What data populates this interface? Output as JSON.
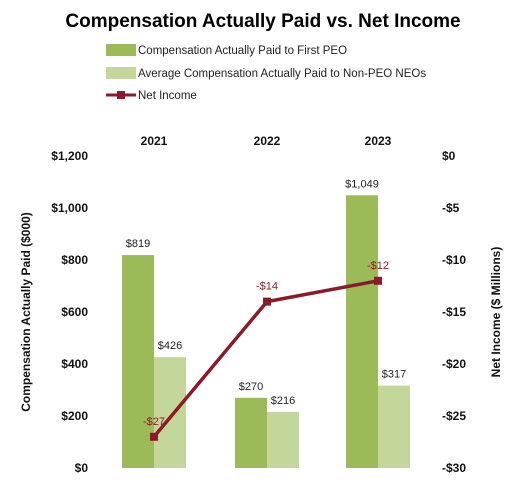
{
  "chart_data": {
    "type": "bar",
    "title": "Compensation Actually Paid vs. Net Income",
    "categories": [
      "2021",
      "2022",
      "2023"
    ],
    "series": [
      {
        "name": "Compensation Actually Paid to First PEO",
        "type": "bar",
        "axis": "left",
        "color": "#9bbb59",
        "values": [
          819,
          270,
          1049
        ],
        "labels": [
          "$819",
          "$270",
          "$1,049"
        ]
      },
      {
        "name": "Average Compensation Actually Paid to Non-PEO NEOs",
        "type": "bar",
        "axis": "left",
        "color": "#c4d79b",
        "values": [
          426,
          216,
          317
        ],
        "labels": [
          "$426",
          "$216",
          "$317"
        ]
      },
      {
        "name": "Net Income",
        "type": "line",
        "axis": "right",
        "color": "#8b1a2b",
        "values": [
          -27,
          -14,
          -12
        ],
        "labels": [
          "-$27",
          "-$14",
          "-$12"
        ]
      }
    ],
    "y_left": {
      "label": "Compensation Actually Paid ($000)",
      "lim": [
        0,
        1200
      ],
      "ticks": [
        0,
        200,
        400,
        600,
        800,
        1000,
        1200
      ],
      "tick_labels": [
        "$0",
        "$200",
        "$400",
        "$600",
        "$800",
        "$1,000",
        "$1,200"
      ]
    },
    "y_right": {
      "label": "Net Income ($ Millions)",
      "lim": [
        -30,
        0
      ],
      "ticks": [
        0,
        -5,
        -10,
        -15,
        -20,
        -25,
        -30
      ],
      "tick_labels": [
        "$0",
        "-$5",
        "-$10",
        "-$15",
        "-$20",
        "-$25",
        "-$30"
      ]
    },
    "category_position": "top",
    "legend_position": "top",
    "grid": false
  }
}
